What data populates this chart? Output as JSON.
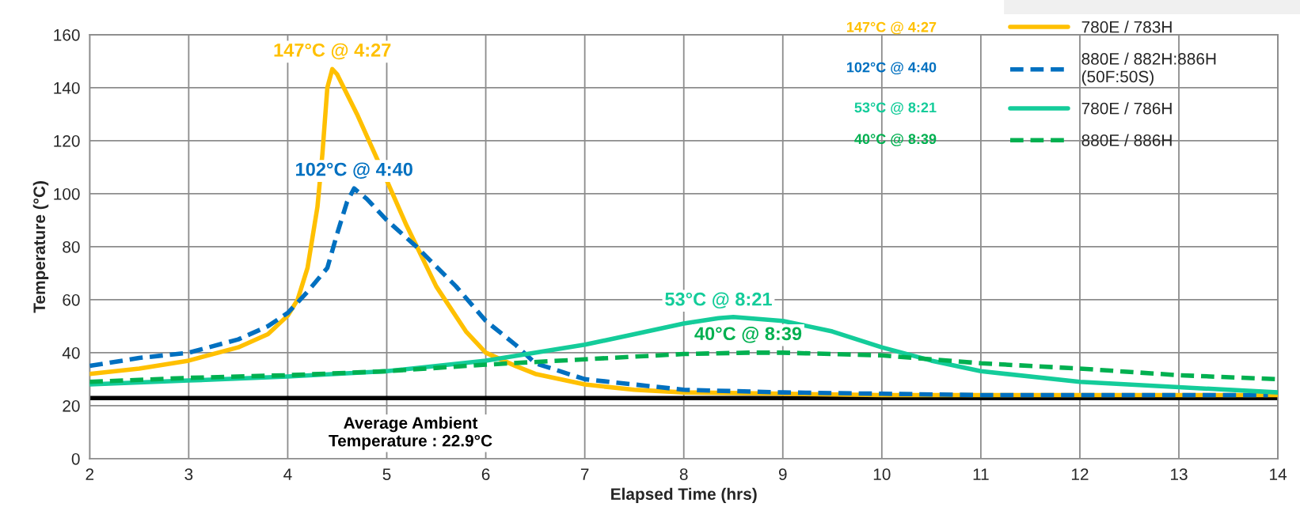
{
  "chart_data": {
    "type": "line",
    "xlabel": "Elapsed Time (hrs)",
    "ylabel": "Temperature (°C)",
    "xlim": [
      2,
      14
    ],
    "xticks": [
      2,
      3,
      4,
      5,
      6,
      7,
      8,
      9,
      10,
      11,
      12,
      13,
      14
    ],
    "ylim": [
      0,
      160
    ],
    "yticks": [
      0,
      20,
      40,
      60,
      80,
      100,
      120,
      140,
      160
    ],
    "grid": true,
    "legend": "top right",
    "series": [
      {
        "name": "780E / 783H",
        "color": "#ffc000",
        "line_style": "solid",
        "x": [
          2,
          2.5,
          3,
          3.5,
          3.8,
          4,
          4.1,
          4.2,
          4.3,
          4.35,
          4.4,
          4.45,
          4.5,
          4.7,
          5,
          5.2,
          5.5,
          5.8,
          6,
          6.3,
          6.5,
          7,
          7.5,
          8,
          9,
          10,
          11,
          12,
          13,
          14
        ],
        "values": [
          32,
          34,
          37,
          42,
          47,
          54,
          60,
          72,
          95,
          115,
          140,
          147,
          145,
          130,
          105,
          88,
          65,
          48,
          40,
          35,
          32,
          28,
          26,
          25,
          24.5,
          24,
          24,
          24,
          24,
          24
        ]
      },
      {
        "name": "880E / 882H:886H\n(50F:50S)",
        "color": "#0070c0",
        "line_style": "dashed",
        "x": [
          2,
          2.5,
          3,
          3.5,
          3.8,
          4,
          4.2,
          4.4,
          4.5,
          4.6,
          4.67,
          4.8,
          5,
          5.3,
          5.7,
          6,
          6.3,
          6.5,
          7,
          7.5,
          8,
          9,
          10,
          11,
          12,
          13,
          13.9
        ],
        "values": [
          35,
          38,
          40,
          45,
          50,
          55,
          63,
          72,
          85,
          97,
          102,
          98,
          90,
          80,
          65,
          52,
          43,
          36,
          30,
          28,
          26,
          25,
          24.5,
          24,
          24,
          24,
          24
        ]
      },
      {
        "name": "780E / 786H",
        "color": "#14cc9a",
        "line_style": "solid",
        "x": [
          2,
          3,
          4,
          5,
          6,
          7,
          7.5,
          8,
          8.35,
          8.5,
          9,
          9.5,
          10,
          10.5,
          11,
          12,
          13,
          14
        ],
        "values": [
          28,
          29.5,
          31,
          33,
          37,
          43,
          47,
          51,
          53,
          53.5,
          52,
          48,
          42,
          37,
          33,
          29,
          27,
          25
        ]
      },
      {
        "name": "880E / 886H",
        "color": "#00b050",
        "line_style": "dashed",
        "x": [
          2,
          3,
          4,
          5,
          6,
          7,
          8,
          8.65,
          9,
          10,
          10.5,
          11,
          12,
          13,
          14
        ],
        "values": [
          29,
          30.5,
          31.5,
          33,
          35.5,
          37.5,
          39.5,
          40,
          40,
          39,
          37.5,
          36,
          34,
          31.5,
          30
        ]
      }
    ],
    "ref_lines": [
      {
        "axis": "y",
        "value": 22.9,
        "label": "Average Ambient\nTemperature : 22.9°C",
        "color": "#000000",
        "line_style": "solid"
      }
    ],
    "annotations": [
      {
        "text": "147°C @ 4:27",
        "x": 4.45,
        "y": 147
      },
      {
        "text": "102°C @ 4:40",
        "x": 4.67,
        "y": 102
      },
      {
        "text": "53°C @ 8:21",
        "x": 8.35,
        "y": 53
      },
      {
        "text": "40°C @ 8:39",
        "x": 8.65,
        "y": 40
      },
      "147°C @ 4:27",
      "102°C @ 4:40",
      "53°C @ 8:21",
      "40°C @ 8:39"
    ]
  }
}
